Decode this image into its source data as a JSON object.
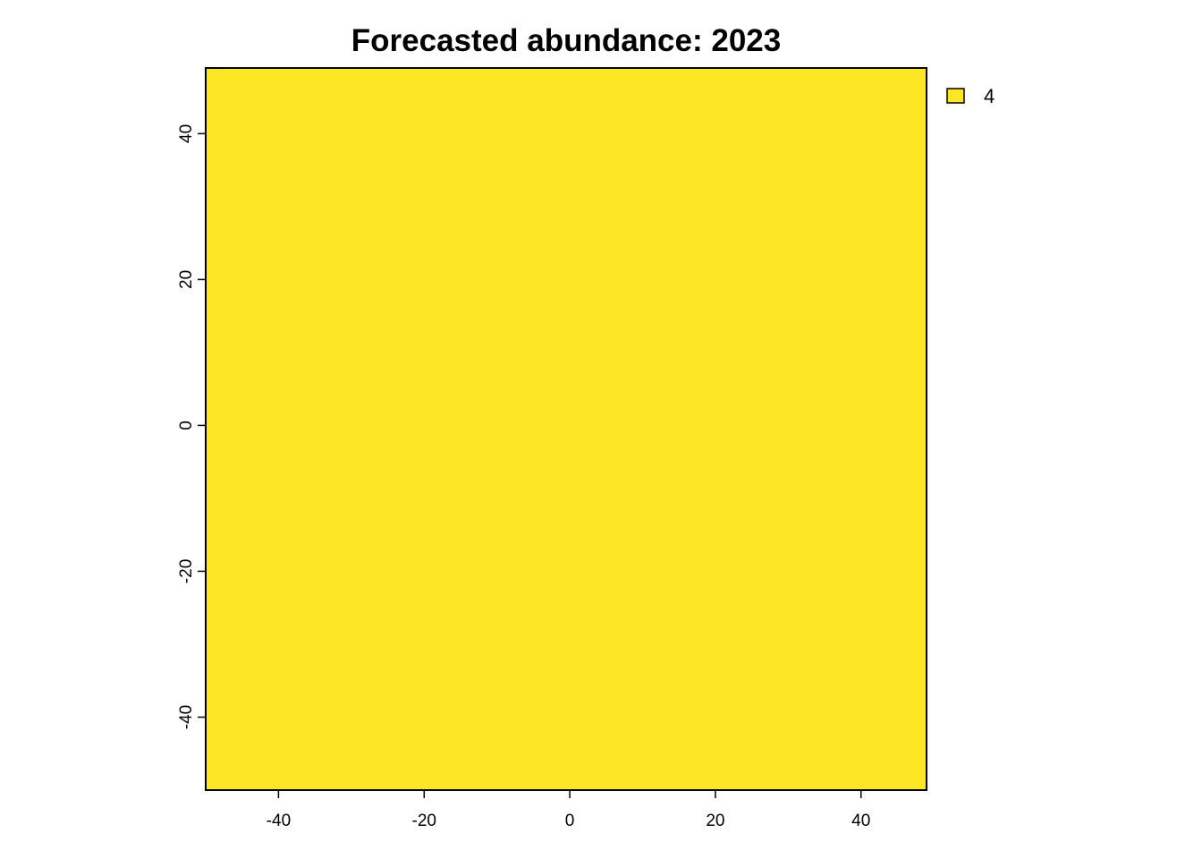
{
  "chart_data": {
    "type": "heatmap",
    "title": "Forecasted abundance: 2023",
    "xlabel": "",
    "ylabel": "",
    "xlim": [
      -50,
      49
    ],
    "ylim": [
      -50,
      49
    ],
    "x_ticks": [
      -40,
      -20,
      0,
      20,
      40
    ],
    "y_ticks": [
      -40,
      -20,
      0,
      20,
      40
    ],
    "x_tick_labels": [
      "-40",
      "-20",
      "0",
      "20",
      "40"
    ],
    "y_tick_labels": [
      "-40",
      "-20",
      "0",
      "20",
      "40"
    ],
    "cells": [
      {
        "x": [
          -50,
          49
        ],
        "y": [
          -50,
          49
        ],
        "value": 4,
        "color": "#FDE725"
      }
    ],
    "legend": {
      "placement": "top-right outside",
      "entries": [
        {
          "label": "4",
          "color": "#FDE725"
        }
      ]
    },
    "grid": false
  }
}
